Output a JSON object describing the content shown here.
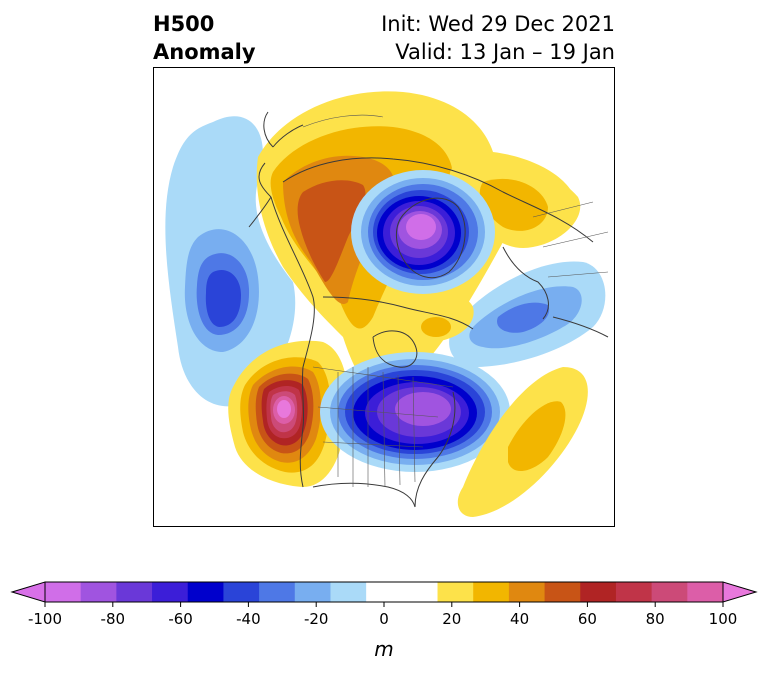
{
  "title": {
    "left_line1": "H500",
    "left_line2": "Anomaly",
    "right_line1": "Init: Wed 29 Dec 2021",
    "right_line2": "Valid: 13 Jan – 19 Jan"
  },
  "colorbar": {
    "label": "m",
    "ticks": [
      "-100",
      "-80",
      "-60",
      "-40",
      "-20",
      "0",
      "20",
      "40",
      "60",
      "80",
      "100"
    ],
    "colors": [
      "#d06ee8",
      "#a054e0",
      "#6a38d8",
      "#3c1ed8",
      "#0000cc",
      "#2a44d8",
      "#4e78e6",
      "#78aef0",
      "#aadaf8",
      "#ffffff",
      "#ffffff",
      "#fde24a",
      "#f2b600",
      "#e08810",
      "#c85416",
      "#b02424",
      "#c03448",
      "#cc4a78",
      "#dc5ea8"
    ],
    "under_color": "#d870e8",
    "over_color": "#e878dc"
  },
  "map": {
    "anomalies": [
      {
        "label": "ridge-arctic",
        "rx": 0.7,
        "ry": 0.4,
        "sign": "pos",
        "levels": [
          [
            -168,
            -50,
            "#fde24a"
          ],
          [
            -150,
            -38,
            "#f2b600"
          ],
          [
            -130,
            -28,
            "#e08810"
          ]
        ]
      },
      {
        "label": "ridge-west-na",
        "sign": "pos"
      },
      {
        "label": "trough-pacific",
        "sign": "neg"
      },
      {
        "label": "trough-polar",
        "sign": "neg"
      },
      {
        "label": "trough-east-na",
        "sign": "neg"
      },
      {
        "label": "ridge-atlantic",
        "sign": "pos"
      },
      {
        "label": "trough-eurasia",
        "sign": "neg"
      }
    ]
  }
}
